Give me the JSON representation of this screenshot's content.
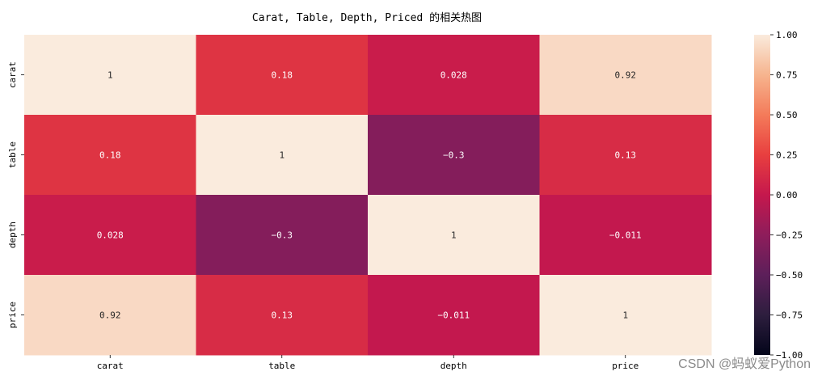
{
  "chart_data": {
    "type": "heatmap",
    "title": "Carat, Table, Depth, Priced 的相关热图",
    "row_labels": [
      "carat",
      "table",
      "depth",
      "price"
    ],
    "col_labels": [
      "carat",
      "table",
      "depth",
      "price"
    ],
    "values": [
      [
        1,
        0.18,
        0.028,
        0.92
      ],
      [
        0.18,
        1,
        -0.3,
        0.13
      ],
      [
        0.028,
        -0.3,
        1,
        -0.011
      ],
      [
        0.92,
        0.13,
        -0.011,
        1
      ]
    ],
    "cell_labels": [
      [
        "1",
        "0.18",
        "0.028",
        "0.92"
      ],
      [
        "0.18",
        "1",
        "−0.3",
        "0.13"
      ],
      [
        "0.028",
        "−0.3",
        "1",
        "−0.011"
      ],
      [
        "0.92",
        "0.13",
        "−0.011",
        "1"
      ]
    ],
    "colorbar": {
      "range": [
        -1,
        1
      ],
      "ticks": [
        1.0,
        0.75,
        0.5,
        0.25,
        0.0,
        -0.25,
        -0.5,
        -0.75,
        -1.0
      ],
      "tick_labels": [
        "1.00",
        "0.75",
        "0.50",
        "0.25",
        "0.00",
        "−0.25",
        "−0.50",
        "−0.75",
        "−1.00"
      ]
    },
    "colormap": "rocket",
    "annotated": true
  },
  "watermark": "CSDN @蚂蚁爱Python"
}
